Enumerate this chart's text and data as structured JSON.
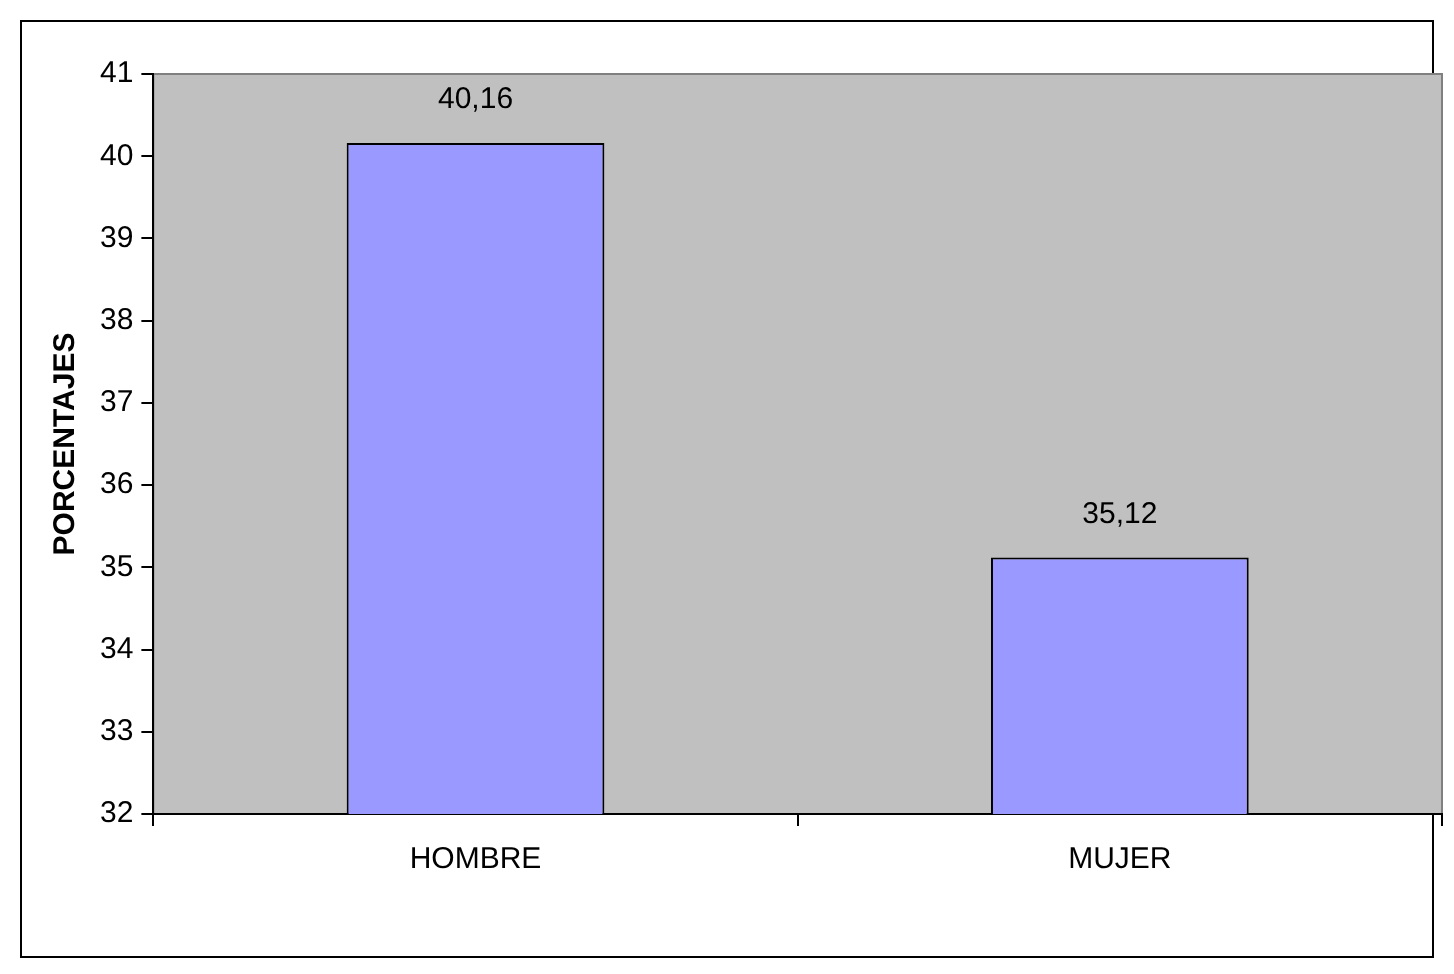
{
  "chart_data": {
    "type": "bar",
    "ylabel": "PORCENTAJES",
    "categories": [
      "HOMBRE",
      "MUJER"
    ],
    "values": [
      40.16,
      35.12
    ],
    "value_labels": [
      "40,16",
      "35,12"
    ],
    "color": "#9999ff",
    "ylim": [
      32,
      41
    ],
    "yticks": [
      32,
      33,
      34,
      35,
      36,
      37,
      38,
      39,
      40,
      41
    ]
  }
}
